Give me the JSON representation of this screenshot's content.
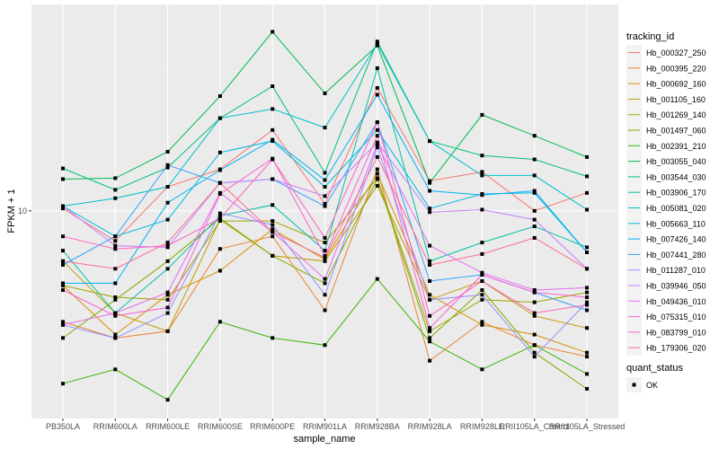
{
  "chart_data": {
    "type": "line",
    "title": "",
    "xlabel": "sample_name",
    "ylabel": "FPKM + 1",
    "y_scale": "log10",
    "y_ticks": [
      10
    ],
    "y_tick_labels": [
      "10"
    ],
    "ylim": [
      1.8,
      55
    ],
    "grid": true,
    "legend_position": "right",
    "categories": [
      "PB350LA",
      "RRIM600LA",
      "RRIM600LE",
      "RRIM600SE",
      "RRIM600PE",
      "RRIM901LA",
      "RRIM928BA",
      "RRIM928LA",
      "RRIM928LE",
      "RRII105LA_Control",
      "RRII105LA_Stressed"
    ],
    "legend": {
      "title": "tracking_id",
      "shape_title": "quant_status",
      "shape_entries": [
        "OK"
      ]
    },
    "series": [
      {
        "name": "Hb_000327_250",
        "color": "#F8766D",
        "values": [
          10.2,
          7.8,
          12.2,
          14.1,
          19.5,
          10.6,
          27.6,
          12.8,
          13.8,
          10.0,
          11.6
        ]
      },
      {
        "name": "Hb_000395_220",
        "color": "#EA8331",
        "values": [
          4.0,
          3.5,
          3.7,
          7.3,
          8.1,
          4.4,
          14.1,
          2.9,
          4.0,
          3.3,
          3.0
        ]
      },
      {
        "name": "Hb_000692_160",
        "color": "#D89000",
        "values": [
          5.4,
          3.6,
          5.0,
          6.1,
          8.6,
          6.7,
          13.6,
          5.0,
          3.9,
          3.6,
          3.1
        ]
      },
      {
        "name": "Hb_001105_160",
        "color": "#C09B00",
        "values": [
          6.6,
          4.3,
          3.7,
          9.3,
          6.9,
          6.6,
          12.3,
          4.8,
          5.6,
          4.2,
          3.8
        ]
      },
      {
        "name": "Hb_001269_140",
        "color": "#A3A500",
        "values": [
          5.4,
          4.9,
          4.8,
          9.2,
          9.2,
          7.7,
          13.1,
          3.7,
          4.8,
          4.7,
          5.1
        ]
      },
      {
        "name": "Hb_001497_060",
        "color": "#7CAE00",
        "values": [
          3.5,
          4.8,
          6.6,
          9.4,
          6.9,
          5.5,
          13.0,
          3.5,
          5.2,
          3.1,
          2.3
        ]
      },
      {
        "name": "Hb_002391_210",
        "color": "#39B600",
        "values": [
          2.4,
          2.7,
          2.1,
          4.0,
          3.5,
          3.3,
          5.7,
          3.4,
          2.7,
          3.3,
          2.6
        ]
      },
      {
        "name": "Hb_003055_040",
        "color": "#00BB4E",
        "values": [
          13.0,
          13.1,
          16.3,
          25.8,
          43.9,
          26.4,
          39.2,
          12.6,
          22.1,
          18.6,
          15.6
        ]
      },
      {
        "name": "Hb_003544_030",
        "color": "#00BF7D",
        "values": [
          14.2,
          11.9,
          14.3,
          21.5,
          28.0,
          13.7,
          40.5,
          17.8,
          15.8,
          15.3,
          13.3
        ]
      },
      {
        "name": "Hb_003906_170",
        "color": "#00C1A3",
        "values": [
          7.2,
          4.3,
          6.2,
          9.6,
          10.5,
          7.2,
          32.5,
          6.6,
          7.7,
          8.8,
          7.4
        ]
      },
      {
        "name": "Hb_005081_020",
        "color": "#00BFC4",
        "values": [
          10.4,
          11.1,
          12.2,
          21.5,
          23.2,
          19.9,
          39.8,
          17.8,
          13.4,
          13.4,
          10.1
        ]
      },
      {
        "name": "Hb_005663_110",
        "color": "#00BAE0",
        "values": [
          10.4,
          8.1,
          9.3,
          16.2,
          17.8,
          12.2,
          19.5,
          10.2,
          11.5,
          11.6,
          7.1
        ]
      },
      {
        "name": "Hb_007426_140",
        "color": "#00B0F6",
        "values": [
          5.5,
          5.5,
          10.7,
          14.0,
          18.0,
          12.9,
          26.1,
          11.8,
          11.4,
          11.8,
          7.1
        ]
      },
      {
        "name": "Hb_007441_280",
        "color": "#35A2FF",
        "values": [
          6.4,
          8.1,
          14.6,
          12.6,
          13.0,
          10.4,
          20.8,
          5.6,
          5.9,
          5.1,
          4.4
        ]
      },
      {
        "name": "Hb_011287_010",
        "color": "#9590FF",
        "values": [
          3.9,
          3.5,
          4.3,
          9.8,
          8.9,
          5.0,
          16.9,
          4.8,
          5.0,
          3.0,
          4.7
        ]
      },
      {
        "name": "Hb_039946_050",
        "color": "#C77CFF",
        "values": [
          10.4,
          7.5,
          7.4,
          12.6,
          13.0,
          11.3,
          17.6,
          9.9,
          10.1,
          9.3,
          6.2
        ]
      },
      {
        "name": "Hb_049436_010",
        "color": "#E76BF3",
        "values": [
          3.9,
          4.3,
          5.1,
          11.6,
          8.4,
          5.7,
          17.3,
          7.5,
          6.0,
          5.2,
          5.3
        ]
      },
      {
        "name": "Hb_075315_010",
        "color": "#FA62DB",
        "values": [
          5.2,
          4.2,
          4.5,
          11.5,
          15.4,
          6.9,
          18.6,
          3.8,
          5.9,
          5.1,
          4.9
        ]
      },
      {
        "name": "Hb_083799_010",
        "color": "#FF62BC",
        "values": [
          8.1,
          7.3,
          7.5,
          9.4,
          15.3,
          8.0,
          20.8,
          4.2,
          5.6,
          4.3,
          4.6
        ]
      },
      {
        "name": "Hb_179306_020",
        "color": "#FF6C91",
        "values": [
          6.6,
          6.2,
          7.7,
          12.6,
          8.4,
          6.8,
          15.6,
          6.4,
          7.0,
          8.0,
          6.2
        ]
      }
    ]
  }
}
